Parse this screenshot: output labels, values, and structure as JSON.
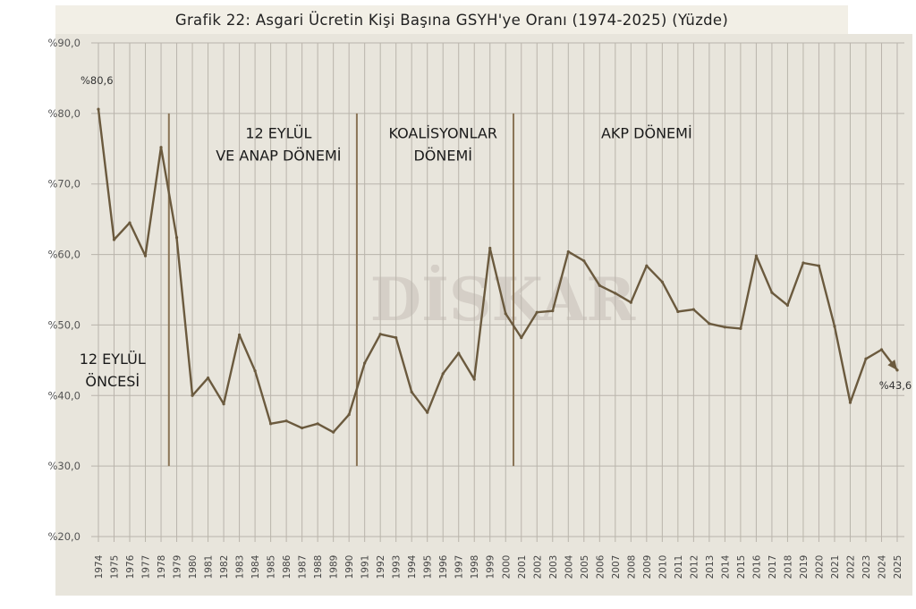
{
  "title": "Grafik 22: Asgari Ücretin Kişi Başına GSYH'ye Oranı (1974-2025) (Yüzde)",
  "watermark": "DİSKAR",
  "colors": {
    "line": "#6b5a3e",
    "divider": "#8a7456",
    "grid": "#b9b4ab",
    "panel": "#e8e5dc",
    "title_bg": "#f2efe6"
  },
  "chart_data": {
    "type": "line",
    "title": "Grafik 22: Asgari Ücretin Kişi Başına GSYH'ye Oranı (1974-2025) (Yüzde)",
    "xlabel": "",
    "ylabel": "",
    "ylim": [
      20,
      90
    ],
    "yticks": [
      20,
      30,
      40,
      50,
      60,
      70,
      80,
      90
    ],
    "ytick_labels": [
      "%20,0",
      "%30,0",
      "%40,0",
      "%50,0",
      "%60,0",
      "%70,0",
      "%80,0",
      "%90,0"
    ],
    "grid": true,
    "legend": false,
    "x": [
      1974,
      1975,
      1976,
      1977,
      1978,
      1979,
      1980,
      1981,
      1982,
      1983,
      1984,
      1985,
      1986,
      1987,
      1988,
      1989,
      1990,
      1991,
      1992,
      1993,
      1994,
      1995,
      1996,
      1997,
      1998,
      1999,
      2000,
      2001,
      2002,
      2003,
      2004,
      2005,
      2006,
      2007,
      2008,
      2009,
      2010,
      2011,
      2012,
      2013,
      2014,
      2015,
      2016,
      2017,
      2018,
      2019,
      2020,
      2021,
      2022,
      2023,
      2024,
      2025
    ],
    "series": [
      {
        "values": [
          80.6,
          62.1,
          64.5,
          59.8,
          75.2,
          62.4,
          40.0,
          42.5,
          38.8,
          48.6,
          43.5,
          36.0,
          36.4,
          35.4,
          36.0,
          34.8,
          37.3,
          44.6,
          48.7,
          48.2,
          40.5,
          37.6,
          43.1,
          46.0,
          42.3,
          60.9,
          51.6,
          48.2,
          51.8,
          52.0,
          60.4,
          59.1,
          55.6,
          54.5,
          53.2,
          58.4,
          56.1,
          51.9,
          52.2,
          50.2,
          49.7,
          49.5,
          59.8,
          54.6,
          52.8,
          58.8,
          58.4,
          49.8,
          39.0,
          45.2,
          46.5,
          43.6
        ]
      }
    ],
    "period_dividers": [
      1979,
      1991,
      2001
    ],
    "period_labels": [
      {
        "lines": [
          "12 EYLÜL",
          "ÖNCESİ"
        ],
        "x": 1974.9,
        "y": 44.5,
        "anchor": "middle"
      },
      {
        "lines": [
          "12 EYLÜL",
          "VE ANAP DÖNEMİ"
        ],
        "x": 1985.5,
        "y": 76.5,
        "anchor": "middle"
      },
      {
        "lines": [
          "KOALİSYONLAR",
          "DÖNEMİ"
        ],
        "x": 1996.0,
        "y": 76.5,
        "anchor": "middle"
      },
      {
        "lines": [
          "AKP DÖNEMİ"
        ],
        "x": 2009.0,
        "y": 76.5,
        "anchor": "middle"
      }
    ],
    "annotations": [
      {
        "text": "%80,6",
        "x": 1974,
        "y": 80.6
      },
      {
        "text": "%43,6",
        "x": 2025,
        "y": 43.6
      }
    ]
  }
}
